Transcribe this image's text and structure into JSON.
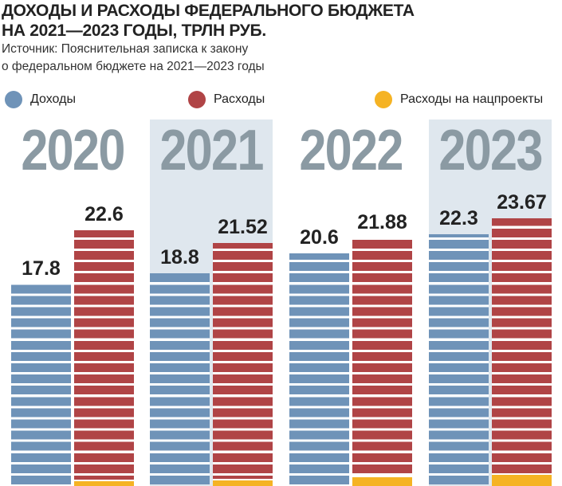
{
  "title_line1": "ДОХОДЫ И РАСХОДЫ ФЕДЕРАЛЬНОГО БЮДЖЕТА",
  "title_line2": "НА 2021—2023 ГОДЫ, ТРЛН РУБ.",
  "source_line1": "Источник: Пояснительная записка к закону",
  "source_line2": "о федеральном бюджете на 2021—2023 годы",
  "chart_data": {
    "type": "bar",
    "categories": [
      "2020",
      "2021",
      "2022",
      "2023"
    ],
    "highlighted": [
      "2021",
      "2023"
    ],
    "series": [
      {
        "name": "Доходы",
        "color": "#6f93b8",
        "values": [
          17.8,
          18.8,
          20.6,
          22.3
        ],
        "labels": [
          "17.8",
          "18.8",
          "20.6",
          "22.3"
        ]
      },
      {
        "name": "Расходы",
        "color": "#b04446",
        "values": [
          22.6,
          21.52,
          21.88,
          23.67
        ],
        "labels": [
          "22.6",
          "21.52",
          "21.88",
          "23.67"
        ]
      },
      {
        "name": "Расходы на нацпроекты",
        "color": "#f5b324",
        "values": [
          0.4,
          0.5,
          0.8,
          1.0
        ]
      }
    ],
    "ylabel": "трлн руб.",
    "ylim": [
      0,
      25
    ]
  }
}
